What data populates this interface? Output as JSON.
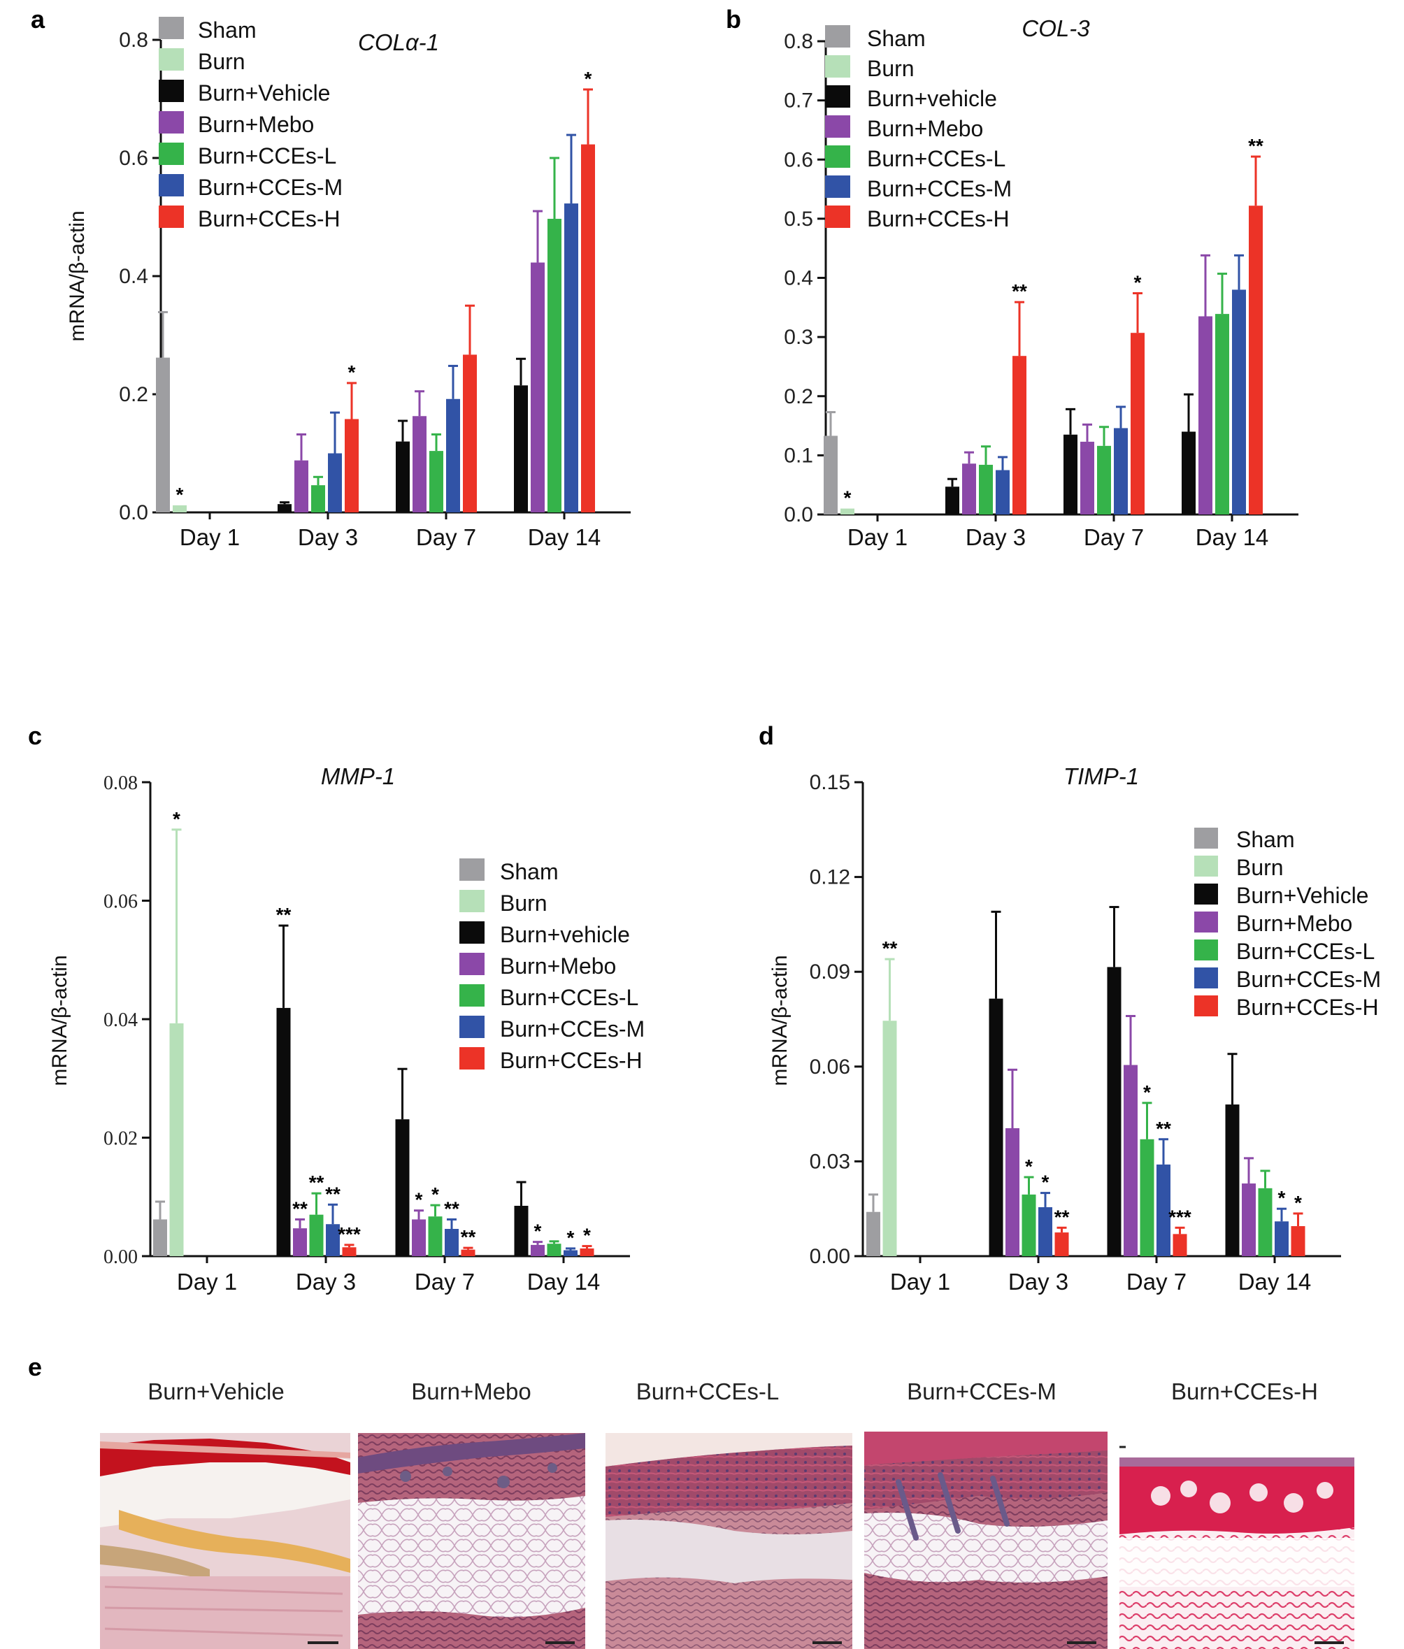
{
  "colors": {
    "Sham": "#9e9ea1",
    "Burn": "#b6e0b8",
    "Burn+Vehicle": "#0b0b0b",
    "Burn+Mebo": "#8b48a8",
    "Burn+CCEs-L": "#35b34a",
    "Burn+CCEs-M": "#3153a6",
    "Burn+CCEs-H": "#ec3327"
  },
  "chart_data": [
    {
      "panel": "a",
      "type": "bar",
      "title": "COLα-1",
      "ylabel": "mRNA/β-actin",
      "xlabel": "",
      "ylim": [
        0,
        0.8
      ],
      "yticks": [
        "0.0",
        "0.2",
        "0.4",
        "0.6",
        "0.8"
      ],
      "categories": [
        "Day 1",
        "Day 3",
        "Day 7",
        "Day 14"
      ],
      "legend": [
        "Sham",
        "Burn",
        "Burn+Vehicle",
        "Burn+Mebo",
        "Burn+CCEs-L",
        "Burn+CCEs-M",
        "Burn+CCEs-H"
      ],
      "series": [
        {
          "name": "Sham",
          "values": [
            0.262,
            null,
            null,
            null
          ],
          "err": [
            0.077,
            null,
            null,
            null
          ],
          "sig": [
            "",
            "",
            "",
            ""
          ]
        },
        {
          "name": "Burn",
          "values": [
            0.012,
            null,
            null,
            null
          ],
          "err": [
            0,
            null,
            null,
            null
          ],
          "sig": [
            "*",
            "",
            "",
            ""
          ]
        },
        {
          "name": "Burn+Vehicle",
          "values": [
            null,
            0.014,
            0.12,
            0.215
          ],
          "err": [
            null,
            0.003,
            0.035,
            0.045
          ],
          "sig": [
            "",
            "",
            "",
            ""
          ]
        },
        {
          "name": "Burn+Mebo",
          "values": [
            null,
            0.088,
            0.163,
            0.423
          ],
          "err": [
            null,
            0.044,
            0.042,
            0.087
          ],
          "sig": [
            "",
            "",
            "",
            ""
          ]
        },
        {
          "name": "Burn+CCEs-L",
          "values": [
            null,
            0.046,
            0.104,
            0.497
          ],
          "err": [
            null,
            0.014,
            0.028,
            0.103
          ],
          "sig": [
            "",
            "",
            "",
            ""
          ]
        },
        {
          "name": "Burn+CCEs-M",
          "values": [
            null,
            0.1,
            0.192,
            0.523
          ],
          "err": [
            null,
            0.069,
            0.056,
            0.116
          ],
          "sig": [
            "",
            "",
            "",
            ""
          ]
        },
        {
          "name": "Burn+CCEs-H",
          "values": [
            null,
            0.158,
            0.267,
            0.623
          ],
          "err": [
            null,
            0.061,
            0.083,
            0.093
          ],
          "sig": [
            "",
            "*",
            "",
            "*"
          ]
        }
      ]
    },
    {
      "panel": "b",
      "type": "bar",
      "title": "COL-3",
      "ylabel": "",
      "xlabel": "",
      "ylim": [
        0,
        0.8
      ],
      "yticks": [
        "0.0",
        "0.1",
        "0.2",
        "0.3",
        "0.4",
        "0.5",
        "0.6",
        "0.7",
        "0.8"
      ],
      "categories": [
        "Day 1",
        "Day 3",
        "Day 7",
        "Day 14"
      ],
      "legend": [
        "Sham",
        "Burn",
        "Burn+vehicle",
        "Burn+Mebo",
        "Burn+CCEs-L",
        "Burn+CCEs-M",
        "Burn+CCEs-H"
      ],
      "series": [
        {
          "name": "Sham",
          "values": [
            0.133,
            null,
            null,
            null
          ],
          "err": [
            0.04,
            null,
            null,
            null
          ],
          "sig": [
            "",
            "",
            "",
            ""
          ]
        },
        {
          "name": "Burn",
          "values": [
            0.01,
            null,
            null,
            null
          ],
          "err": [
            0,
            null,
            null,
            null
          ],
          "sig": [
            "*",
            "",
            "",
            ""
          ]
        },
        {
          "name": "Burn+vehicle",
          "values": [
            null,
            0.047,
            0.135,
            0.14
          ],
          "err": [
            null,
            0.013,
            0.043,
            0.063
          ],
          "sig": [
            "",
            "",
            "",
            ""
          ]
        },
        {
          "name": "Burn+Mebo",
          "values": [
            null,
            0.086,
            0.123,
            0.335
          ],
          "err": [
            null,
            0.019,
            0.029,
            0.103
          ],
          "sig": [
            "",
            "",
            "",
            ""
          ]
        },
        {
          "name": "Burn+CCEs-L",
          "values": [
            null,
            0.084,
            0.116,
            0.339
          ],
          "err": [
            null,
            0.031,
            0.032,
            0.068
          ],
          "sig": [
            "",
            "",
            "",
            ""
          ]
        },
        {
          "name": "Burn+CCEs-M",
          "values": [
            null,
            0.075,
            0.146,
            0.38
          ],
          "err": [
            null,
            0.022,
            0.036,
            0.058
          ],
          "sig": [
            "",
            "",
            "",
            ""
          ]
        },
        {
          "name": "Burn+CCEs-H",
          "values": [
            null,
            0.268,
            0.307,
            0.522
          ],
          "err": [
            null,
            0.091,
            0.067,
            0.083
          ],
          "sig": [
            "",
            "**",
            "*",
            "**"
          ]
        }
      ]
    },
    {
      "panel": "c",
      "type": "bar",
      "title": "MMP-1",
      "ylabel": "mRNA/β-actin",
      "xlabel": "",
      "ylim": [
        0,
        0.08
      ],
      "yticks": [
        "0.00",
        "0.02",
        "0.04",
        "0.06",
        "0.08"
      ],
      "categories": [
        "Day 1",
        "Day 3",
        "Day 7",
        "Day 14"
      ],
      "legend": [
        "Sham",
        "Burn",
        "Burn+vehicle",
        "Burn+Mebo",
        "Burn+CCEs-L",
        "Burn+CCEs-M",
        "Burn+CCEs-H"
      ],
      "series": [
        {
          "name": "Sham",
          "values": [
            0.0062,
            null,
            null,
            null
          ],
          "err": [
            0.003,
            null,
            null,
            null
          ],
          "sig": [
            "",
            "",
            "",
            ""
          ]
        },
        {
          "name": "Burn",
          "values": [
            0.0393,
            null,
            null,
            null
          ],
          "err": [
            0.0327,
            null,
            null,
            null
          ],
          "sig": [
            "*",
            "",
            "",
            ""
          ]
        },
        {
          "name": "Burn+vehicle",
          "values": [
            null,
            0.0419,
            0.0231,
            0.0085
          ],
          "err": [
            null,
            0.0139,
            0.0085,
            0.004
          ],
          "sig": [
            "",
            "**",
            "",
            ""
          ]
        },
        {
          "name": "Burn+Mebo",
          "values": [
            null,
            0.0047,
            0.0062,
            0.0019
          ],
          "err": [
            null,
            0.0015,
            0.0015,
            0.0005
          ],
          "sig": [
            "",
            "**",
            "*",
            "*"
          ]
        },
        {
          "name": "Burn+CCEs-L",
          "values": [
            null,
            0.007,
            0.0067,
            0.0021
          ],
          "err": [
            null,
            0.0036,
            0.0019,
            0.0004
          ],
          "sig": [
            "",
            "**",
            "*",
            ""
          ]
        },
        {
          "name": "Burn+CCEs-M",
          "values": [
            null,
            0.0054,
            0.0046,
            0.001
          ],
          "err": [
            null,
            0.0033,
            0.0016,
            0.0003
          ],
          "sig": [
            "",
            "**",
            "**",
            "*"
          ]
        },
        {
          "name": "Burn+CCEs-H",
          "values": [
            null,
            0.0015,
            0.0011,
            0.0013
          ],
          "err": [
            null,
            0.0004,
            0.0003,
            0.0004
          ],
          "sig": [
            "",
            "***",
            "**",
            "*"
          ]
        }
      ]
    },
    {
      "panel": "d",
      "type": "bar",
      "title": "TIMP-1",
      "ylabel": "mRNA/β-actin",
      "xlabel": "",
      "ylim": [
        0,
        0.15
      ],
      "yticks": [
        "0.00",
        "0.03",
        "0.06",
        "0.09",
        "0.12",
        "0.15"
      ],
      "categories": [
        "Day 1",
        "Day 3",
        "Day 7",
        "Day 14"
      ],
      "legend": [
        "Sham",
        "Burn",
        "Burn+Vehicle",
        "Burn+Mebo",
        "Burn+CCEs-L",
        "Burn+CCEs-M",
        "Burn+CCEs-H"
      ],
      "series": [
        {
          "name": "Sham",
          "values": [
            0.014,
            null,
            null,
            null
          ],
          "err": [
            0.0055,
            null,
            null,
            null
          ],
          "sig": [
            "",
            "",
            "",
            ""
          ]
        },
        {
          "name": "Burn",
          "values": [
            0.0745,
            null,
            null,
            null
          ],
          "err": [
            0.0195,
            null,
            null,
            null
          ],
          "sig": [
            "**",
            "",
            "",
            ""
          ]
        },
        {
          "name": "Burn+Vehicle",
          "values": [
            null,
            0.0815,
            0.0915,
            0.048
          ],
          "err": [
            null,
            0.0275,
            0.019,
            0.016
          ],
          "sig": [
            "",
            "",
            "",
            ""
          ]
        },
        {
          "name": "Burn+Mebo",
          "values": [
            null,
            0.0405,
            0.0605,
            0.023
          ],
          "err": [
            null,
            0.0185,
            0.0155,
            0.008
          ],
          "sig": [
            "",
            "",
            "",
            ""
          ]
        },
        {
          "name": "Burn+CCEs-L",
          "values": [
            null,
            0.0195,
            0.037,
            0.0215
          ],
          "err": [
            null,
            0.0055,
            0.0115,
            0.0055
          ],
          "sig": [
            "",
            "*",
            "*",
            ""
          ]
        },
        {
          "name": "Burn+CCEs-M",
          "values": [
            null,
            0.0155,
            0.029,
            0.011
          ],
          "err": [
            null,
            0.0045,
            0.008,
            0.004
          ],
          "sig": [
            "",
            "*",
            "**",
            "*"
          ]
        },
        {
          "name": "Burn+CCEs-H",
          "values": [
            null,
            0.0075,
            0.007,
            0.0095
          ],
          "err": [
            null,
            0.0015,
            0.002,
            0.004
          ],
          "sig": [
            "",
            "**",
            "***",
            "*"
          ]
        }
      ]
    }
  ],
  "histology": {
    "panel": "e",
    "titles": [
      "Burn+Vehicle",
      "Burn+Mebo",
      "Burn+CCEs-L",
      "Burn+CCEs-M",
      "Burn+CCEs-H"
    ]
  }
}
